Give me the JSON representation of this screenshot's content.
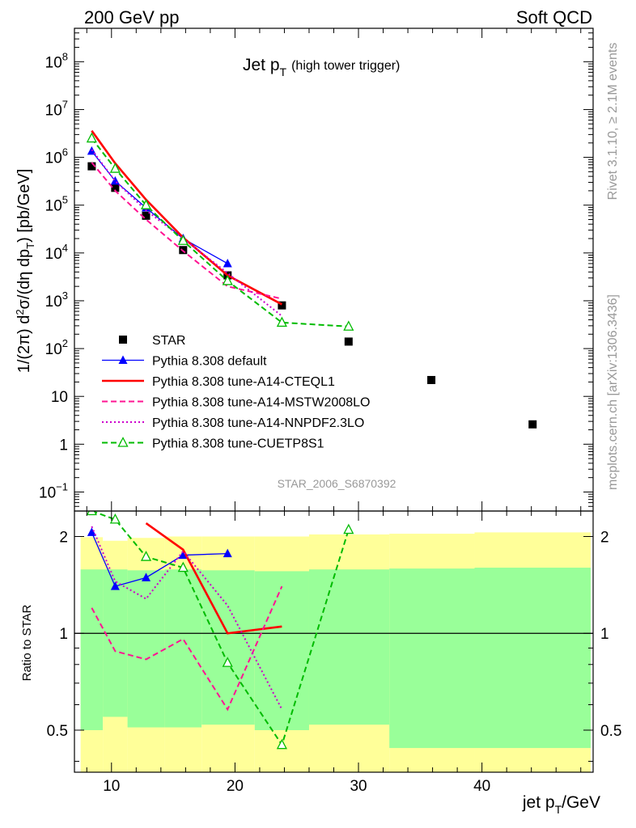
{
  "header": {
    "left": "200 GeV pp",
    "right": "Soft QCD"
  },
  "side_labels": {
    "rivet": "Rivet 3.1.10, ≥ 2.1M events",
    "mcplots": "mcplots.cern.ch [arXiv:1306.3436]"
  },
  "chart_data": [
    {
      "type": "scatter",
      "panel": "main",
      "title_main": "Jet p",
      "title_sub": "T",
      "title_note": "(high tower trigger)",
      "watermark": "STAR_2006_S6870392",
      "ylabel": "1/(2π) d²σ/(dη dp_T) [pb/GeV]",
      "yscale": "log",
      "xlim": [
        7,
        49
      ],
      "ylim": [
        0.04,
        500000000
      ],
      "y_tick_labels": [
        {
          "v": 0.1,
          "base": "10",
          "exp": "−1"
        },
        {
          "v": 1,
          "base": "1",
          "exp": ""
        },
        {
          "v": 10,
          "base": "10",
          "exp": ""
        },
        {
          "v": 100,
          "base": "10",
          "exp": "2"
        },
        {
          "v": 1000,
          "base": "10",
          "exp": "3"
        },
        {
          "v": 10000,
          "base": "10",
          "exp": "4"
        },
        {
          "v": 100000,
          "base": "10",
          "exp": "5"
        },
        {
          "v": 1000000,
          "base": "10",
          "exp": "6"
        },
        {
          "v": 10000000,
          "base": "10",
          "exp": "7"
        },
        {
          "v": 100000000,
          "base": "10",
          "exp": "8"
        }
      ],
      "series": [
        {
          "name": "STAR",
          "color": "#000000",
          "style": "data",
          "marker": "square",
          "x": [
            8.4,
            10.3,
            12.8,
            15.8,
            19.4,
            23.8,
            29.2,
            35.9,
            44.1
          ],
          "y": [
            650000,
            230000,
            60000,
            11500,
            3400,
            800,
            140,
            22,
            2.6
          ]
        },
        {
          "name": "Pythia 8.308 default",
          "color": "#0000ff",
          "style": "solid",
          "marker": "triangle",
          "x": [
            8.4,
            10.3,
            12.8,
            15.8,
            19.4
          ],
          "y": [
            1350000,
            320000,
            88000,
            20000,
            6000
          ]
        },
        {
          "name": "Pythia 8.308 tune-A14-CTEQL1",
          "color": "#ff0000",
          "style": "solid-thick",
          "marker": "none",
          "x": [
            8.4,
            10.3,
            12.8,
            15.8,
            19.4,
            23.8
          ],
          "y": [
            3600000,
            750000,
            130000,
            21000,
            3400,
            840
          ]
        },
        {
          "name": "Pythia 8.308 tune-A14-MSTW2008LO",
          "color": "#ff1493",
          "style": "dashed",
          "marker": "none",
          "x": [
            8.4,
            10.3,
            12.8,
            15.8,
            19.4,
            23.8
          ],
          "y": [
            780000,
            200000,
            50000,
            11000,
            2000,
            1100
          ]
        },
        {
          "name": "Pythia 8.308 tune-A14-NNPDF2.3LO",
          "color": "#cc00cc",
          "style": "dotted",
          "marker": "none",
          "x": [
            8.4,
            10.3,
            12.8,
            15.8,
            19.4,
            23.8
          ],
          "y": [
            1450000,
            320000,
            78000,
            20000,
            3800,
            480
          ]
        },
        {
          "name": "Pythia 8.308 tune-CUETP8S1",
          "color": "#00bb00",
          "style": "dashed",
          "marker": "open-triangle",
          "x": [
            8.4,
            10.3,
            12.8,
            15.8,
            19.4,
            23.8,
            29.2
          ],
          "y": [
            2500000,
            580000,
            100000,
            18000,
            2600,
            350,
            290
          ]
        }
      ],
      "legend_placement": "lower-left"
    },
    {
      "type": "scatter",
      "panel": "ratio",
      "ylabel": "Ratio to STAR",
      "xlabel_main": "jet p",
      "xlabel_sub": "T",
      "xlabel_unit": "/GeV",
      "yscale": "log",
      "xlim": [
        7,
        49
      ],
      "ylim": [
        0.37,
        2.4
      ],
      "x_tick_labels": [
        10,
        20,
        30,
        40
      ],
      "y_tick_labels": [
        {
          "v": 0.5,
          "t": "0.5"
        },
        {
          "v": 1,
          "t": "1"
        },
        {
          "v": 2,
          "t": "2"
        }
      ],
      "bands": {
        "bins": [
          7.5,
          9.3,
          11.3,
          14.3,
          17.3,
          21.6,
          26.0,
          32.5,
          39.4,
          48.8
        ],
        "green_low": [
          0.5,
          0.55,
          0.51,
          0.51,
          0.52,
          0.5,
          0.52,
          0.44,
          0.44
        ],
        "green_high": [
          1.58,
          1.58,
          1.57,
          1.58,
          1.57,
          1.56,
          1.58,
          1.59,
          1.6
        ],
        "yellow_low": [
          0.37,
          0.37,
          0.37,
          0.37,
          0.37,
          0.37,
          0.37,
          0.37,
          0.37
        ],
        "yellow_high": [
          1.99,
          1.94,
          1.98,
          2.0,
          2.0,
          2.0,
          2.03,
          2.04,
          2.06
        ],
        "green_color": "#99ff99",
        "yellow_color": "#ffff99"
      },
      "series": [
        {
          "name": "Pythia 8.308 default",
          "color": "#0000ff",
          "style": "solid",
          "marker": "triangle",
          "x": [
            8.4,
            10.3,
            12.8,
            15.8,
            19.4
          ],
          "y": [
            2.06,
            1.4,
            1.49,
            1.75,
            1.77
          ]
        },
        {
          "name": "Pythia 8.308 tune-A14-CTEQL1",
          "color": "#ff0000",
          "style": "solid-thick",
          "marker": "none",
          "x": [
            12.8,
            15.8,
            19.4,
            23.8
          ],
          "y": [
            2.2,
            1.82,
            1.0,
            1.05
          ]
        },
        {
          "name": "Pythia 8.308 tune-A14-MSTW2008LO",
          "color": "#ff1493",
          "style": "dashed",
          "marker": "none",
          "x": [
            8.4,
            10.3,
            12.8,
            15.8,
            19.4,
            23.8
          ],
          "y": [
            1.2,
            0.88,
            0.83,
            0.96,
            0.58,
            1.4
          ]
        },
        {
          "name": "Pythia 8.308 tune-A14-NNPDF2.3LO",
          "color": "#cc00cc",
          "style": "dotted",
          "marker": "none",
          "x": [
            8.4,
            10.3,
            12.8,
            15.8,
            19.4,
            23.8
          ],
          "y": [
            2.15,
            1.45,
            1.28,
            1.8,
            1.22,
            0.58
          ]
        },
        {
          "name": "Pythia 8.308 tune-CUETP8S1",
          "color": "#00bb00",
          "style": "dashed",
          "marker": "open-triangle",
          "x": [
            8.4,
            10.3,
            12.8,
            15.8,
            19.4,
            23.8,
            29.2
          ],
          "y": [
            2.4,
            2.26,
            1.73,
            1.6,
            0.81,
            0.45,
            2.1
          ]
        }
      ]
    }
  ]
}
